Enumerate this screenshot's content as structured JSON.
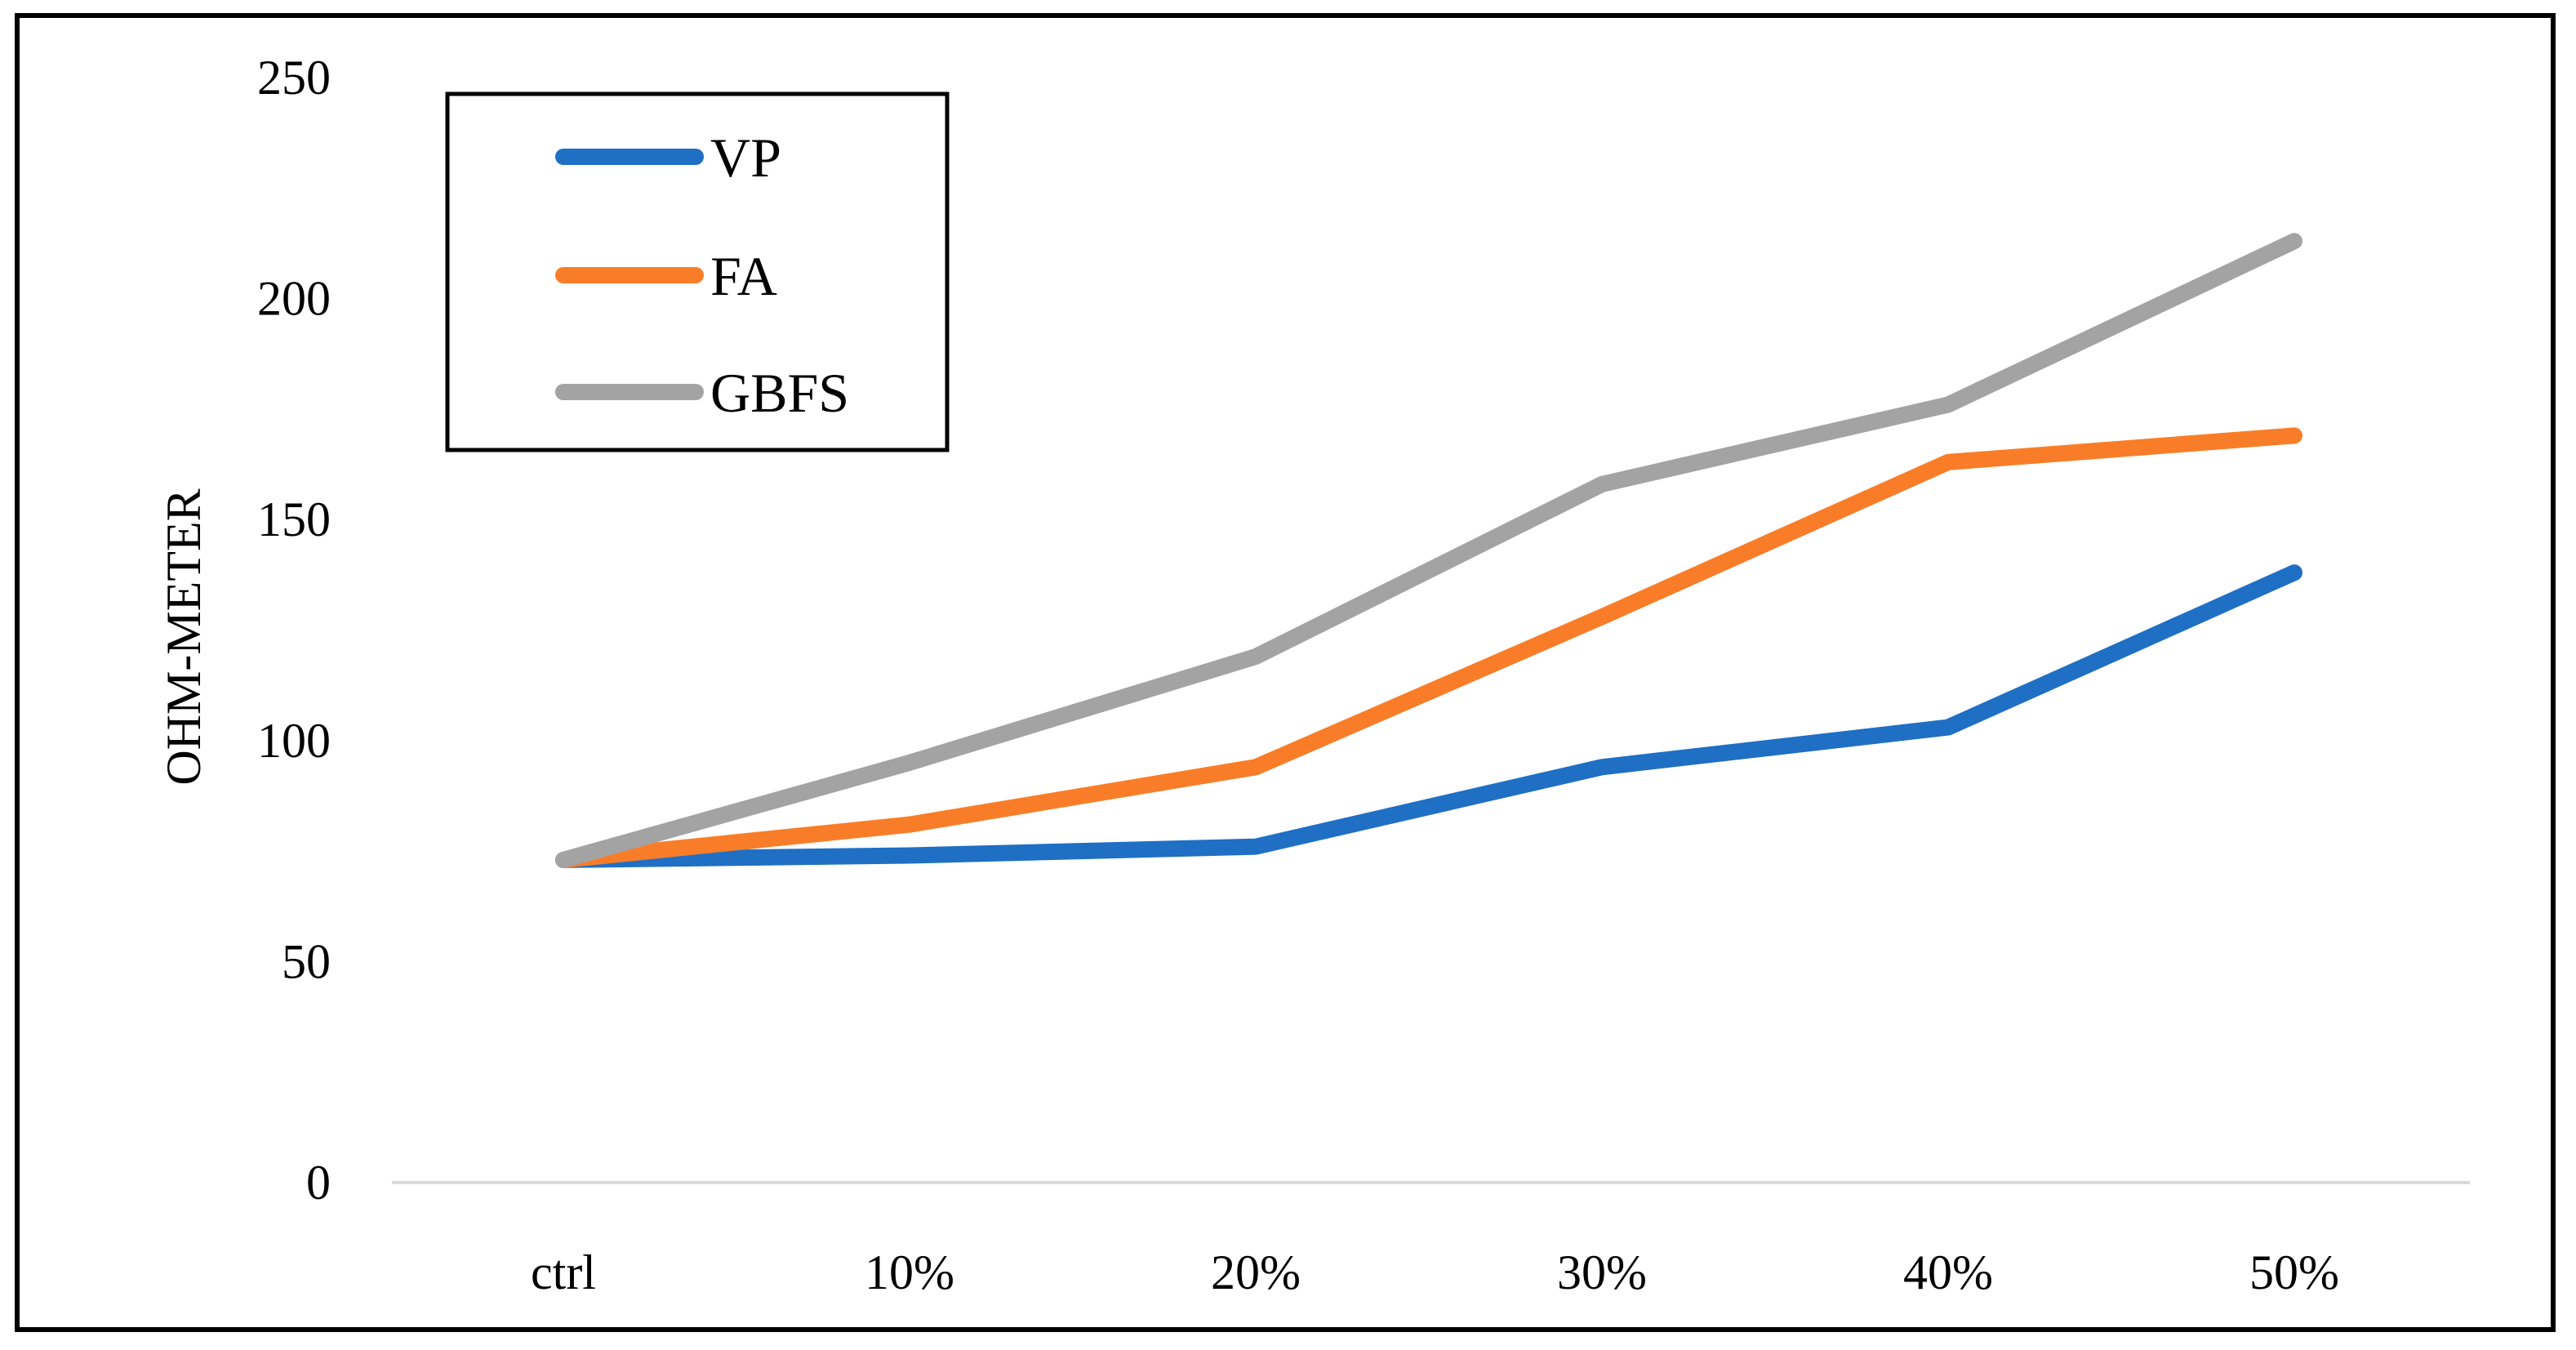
{
  "chart_data": {
    "type": "line",
    "title": "",
    "xlabel": "",
    "ylabel": "OHM-METER",
    "categories": [
      "ctrl",
      "10%",
      "20%",
      "30%",
      "40%",
      "50%"
    ],
    "ylim": [
      0,
      250
    ],
    "yticks": [
      0,
      50,
      100,
      150,
      200,
      250
    ],
    "grid": false,
    "legend_position": "top-left",
    "series": [
      {
        "name": "VP",
        "color": "#1F6FC4",
        "values": [
          73,
          74,
          76,
          94,
          103,
          138
        ]
      },
      {
        "name": "FA",
        "color": "#F97D28",
        "values": [
          73,
          81,
          94,
          128,
          163,
          169
        ]
      },
      {
        "name": "GBFS",
        "color": "#A3A3A3",
        "values": [
          73,
          95,
          119,
          158,
          176,
          213
        ]
      }
    ]
  }
}
